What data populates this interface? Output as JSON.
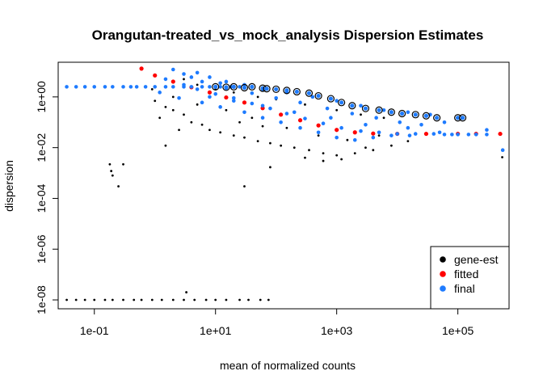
{
  "chart_data": {
    "type": "scatter",
    "title": "Orangutan-treated_vs_mock_analysis Dispersion Estimates",
    "xlabel": "mean of normalized counts",
    "ylabel": "dispersion",
    "x_scale": "log10",
    "y_scale": "log10",
    "xlim": [
      0.0253,
      700000
    ],
    "ylim": [
      4.47e-09,
      23.2
    ],
    "x_ticks": [
      {
        "value": 0.1,
        "label": "1e-01"
      },
      {
        "value": 10,
        "label": "1e+01"
      },
      {
        "value": 1000,
        "label": "1e+03"
      },
      {
        "value": 100000,
        "label": "1e+05"
      }
    ],
    "y_ticks": [
      {
        "value": 1e-08,
        "label": "1e-08"
      },
      {
        "value": 1e-06,
        "label": "1e-06"
      },
      {
        "value": 0.0001,
        "label": "1e-04"
      },
      {
        "value": 0.01,
        "label": "1e-02"
      },
      {
        "value": 1,
        "label": "1e+00"
      }
    ],
    "grid": false,
    "legend_position": "bottom-right",
    "series": [
      {
        "name": "gene-est",
        "color": "#000000",
        "points": [
          [
            0.035,
            1e-08
          ],
          [
            0.05,
            1e-08
          ],
          [
            0.07,
            1e-08
          ],
          [
            0.1,
            1e-08
          ],
          [
            0.15,
            1e-08
          ],
          [
            0.2,
            1e-08
          ],
          [
            0.3,
            1e-08
          ],
          [
            0.45,
            1e-08
          ],
          [
            0.6,
            1e-08
          ],
          [
            0.9,
            1e-08
          ],
          [
            1.3,
            1e-08
          ],
          [
            2,
            1e-08
          ],
          [
            3,
            1e-08
          ],
          [
            4.5,
            1e-08
          ],
          [
            7,
            1e-08
          ],
          [
            10,
            1e-08
          ],
          [
            15,
            1e-08
          ],
          [
            25,
            1e-08
          ],
          [
            35,
            1e-08
          ],
          [
            55,
            1e-08
          ],
          [
            75,
            1e-08
          ],
          [
            3.3,
            2e-08
          ],
          [
            0.18,
            0.0022
          ],
          [
            0.19,
            0.0012
          ],
          [
            0.2,
            0.0008
          ],
          [
            0.3,
            0.0022
          ],
          [
            0.25,
            0.0003
          ],
          [
            1.5,
            0.012
          ],
          [
            30,
            0.0003
          ],
          [
            80,
            0.0017
          ],
          [
            540000,
            0.0042
          ],
          [
            1,
            0.7
          ],
          [
            1.5,
            0.4
          ],
          [
            2,
            0.3
          ],
          [
            3,
            0.2
          ],
          [
            4,
            0.1
          ],
          [
            6,
            0.08
          ],
          [
            8,
            0.05
          ],
          [
            12,
            0.04
          ],
          [
            20,
            0.03
          ],
          [
            30,
            0.025
          ],
          [
            50,
            0.018
          ],
          [
            80,
            0.015
          ],
          [
            120,
            0.012
          ],
          [
            200,
            0.01
          ],
          [
            350,
            0.008
          ],
          [
            600,
            0.006
          ],
          [
            1000,
            0.005
          ],
          [
            2000,
            0.006
          ],
          [
            4000,
            0.008
          ],
          [
            8000,
            0.012
          ],
          [
            15000,
            0.018
          ],
          [
            3,
            5
          ],
          [
            5,
            3
          ],
          [
            10,
            2
          ],
          [
            20,
            1.5
          ],
          [
            50,
            1
          ],
          [
            100,
            0.8
          ],
          [
            300,
            0.5
          ],
          [
            1000,
            0.3
          ],
          [
            2500,
            0.2
          ],
          [
            6000,
            0.15
          ],
          [
            2,
            1
          ],
          [
            5,
            0.5
          ],
          [
            15,
            0.3
          ],
          [
            40,
            0.15
          ],
          [
            150,
            0.06
          ],
          [
            500,
            0.03
          ],
          [
            1500,
            0.02
          ],
          [
            5000,
            0.03
          ],
          [
            1.2,
            0.15
          ],
          [
            2.5,
            0.05
          ],
          [
            600,
            0.003
          ],
          [
            1200,
            0.0035
          ],
          [
            300,
            0.004
          ],
          [
            3000,
            0.01
          ],
          [
            25,
            0.1
          ],
          [
            60,
            0.07
          ],
          [
            0.9,
            2
          ]
        ]
      },
      {
        "name": "fitted",
        "color": "#ff0000",
        "points": [
          [
            0.6,
            13
          ],
          [
            1,
            7
          ],
          [
            2,
            4
          ],
          [
            4,
            2.4
          ],
          [
            8,
            1.5
          ],
          [
            15,
            0.95
          ],
          [
            30,
            0.6
          ],
          [
            60,
            0.36
          ],
          [
            120,
            0.2
          ],
          [
            250,
            0.12
          ],
          [
            500,
            0.075
          ],
          [
            1000,
            0.05
          ],
          [
            2000,
            0.04
          ],
          [
            4000,
            0.036
          ],
          [
            10000,
            0.035
          ],
          [
            30000,
            0.035
          ],
          [
            100000,
            0.035
          ],
          [
            200000,
            0.035
          ],
          [
            500000,
            0.035
          ]
        ]
      },
      {
        "name": "final",
        "color": "#1e7bff",
        "points": [
          [
            0.035,
            2.5
          ],
          [
            0.05,
            2.5
          ],
          [
            0.07,
            2.5
          ],
          [
            0.1,
            2.5
          ],
          [
            0.15,
            2.5
          ],
          [
            0.2,
            2.5
          ],
          [
            0.3,
            2.5
          ],
          [
            0.4,
            2.5
          ],
          [
            0.5,
            2.5
          ],
          [
            0.7,
            2.5
          ],
          [
            1,
            2.5
          ],
          [
            1.5,
            2.5
          ],
          [
            2,
            2.5
          ],
          [
            3,
            2.5
          ],
          [
            4,
            2.5
          ],
          [
            6,
            2.5
          ],
          [
            8,
            2.5
          ],
          [
            12,
            2.5
          ],
          [
            18,
            2.5
          ],
          [
            25,
            2.5
          ],
          [
            1.5,
            5
          ],
          [
            3,
            3
          ],
          [
            5,
            2
          ],
          [
            10,
            1.3
          ],
          [
            20,
            0.9
          ],
          [
            40,
            0.55
          ],
          [
            80,
            0.35
          ],
          [
            150,
            0.22
          ],
          [
            300,
            0.14
          ],
          [
            600,
            0.09
          ],
          [
            1200,
            0.06
          ],
          [
            2500,
            0.045
          ],
          [
            5000,
            0.04
          ],
          [
            10000,
            0.035
          ],
          [
            20000,
            0.035
          ],
          [
            40000,
            0.035
          ],
          [
            1.2,
            1.5
          ],
          [
            2.5,
            0.9
          ],
          [
            6,
            0.6
          ],
          [
            12,
            0.4
          ],
          [
            30,
            0.25
          ],
          [
            60,
            0.15
          ],
          [
            120,
            0.1
          ],
          [
            250,
            0.06
          ],
          [
            500,
            0.04
          ],
          [
            1000,
            0.025
          ],
          [
            2000,
            0.02
          ],
          [
            4000,
            0.025
          ],
          [
            8000,
            0.03
          ],
          [
            16000,
            0.03
          ],
          [
            3,
            8
          ],
          [
            6,
            4
          ],
          [
            15,
            2.2
          ],
          [
            40,
            1.4
          ],
          [
            100,
            0.9
          ],
          [
            250,
            0.6
          ],
          [
            700,
            0.35
          ],
          [
            1800,
            0.22
          ],
          [
            4500,
            0.15
          ],
          [
            11000,
            0.1
          ],
          [
            25000,
            0.08
          ],
          [
            8,
            1
          ],
          [
            20,
            0.7
          ],
          [
            60,
            0.45
          ],
          [
            200,
            0.25
          ],
          [
            800,
            0.15
          ],
          [
            3000,
            0.08
          ],
          [
            15000,
            0.06
          ],
          [
            50000,
            0.04
          ],
          [
            2,
            12
          ],
          [
            4,
            6
          ],
          [
            12,
            3.5
          ],
          [
            60000,
            0.1
          ],
          [
            100000,
            0.15
          ],
          [
            120000,
            0.15
          ],
          [
            300000,
            0.05
          ],
          [
            550000,
            0.008
          ],
          [
            60000,
            0.033
          ],
          [
            80000,
            0.033
          ],
          [
            100000,
            0.033
          ],
          [
            150000,
            0.033
          ],
          [
            200000,
            0.033
          ],
          [
            300000,
            0.033
          ],
          [
            5,
            9
          ],
          [
            8,
            6
          ],
          [
            15,
            4
          ],
          [
            30,
            3
          ],
          [
            60,
            2
          ],
          [
            150,
            1.5
          ],
          [
            400,
            1
          ],
          [
            1000,
            0.7
          ],
          [
            2500,
            0.45
          ],
          [
            6000,
            0.3
          ],
          [
            15000,
            0.25
          ],
          [
            35000,
            0.2
          ]
        ]
      }
    ],
    "outlier_markers": {
      "note": "final points that are circled (dispersion outliers)",
      "points": [
        [
          10,
          2.5
        ],
        [
          20,
          2.5
        ],
        [
          40,
          2.5
        ],
        [
          60,
          2.2
        ],
        [
          100,
          2
        ],
        [
          150,
          1.8
        ],
        [
          220,
          1.6
        ],
        [
          350,
          1.4
        ],
        [
          500,
          1.1
        ],
        [
          800,
          0.85
        ],
        [
          1200,
          0.6
        ],
        [
          1800,
          0.45
        ],
        [
          3000,
          0.35
        ],
        [
          5000,
          0.3
        ],
        [
          8000,
          0.25
        ],
        [
          12000,
          0.22
        ],
        [
          20000,
          0.2
        ],
        [
          30000,
          0.18
        ],
        [
          45000,
          0.15
        ],
        [
          100000,
          0.15
        ],
        [
          120000,
          0.15
        ],
        [
          15,
          2.4
        ],
        [
          30,
          2.3
        ],
        [
          70,
          2.1
        ]
      ]
    },
    "legend": [
      {
        "label": "gene-est",
        "color": "#000000"
      },
      {
        "label": "fitted",
        "color": "#ff0000"
      },
      {
        "label": "final",
        "color": "#1e7bff"
      }
    ]
  }
}
